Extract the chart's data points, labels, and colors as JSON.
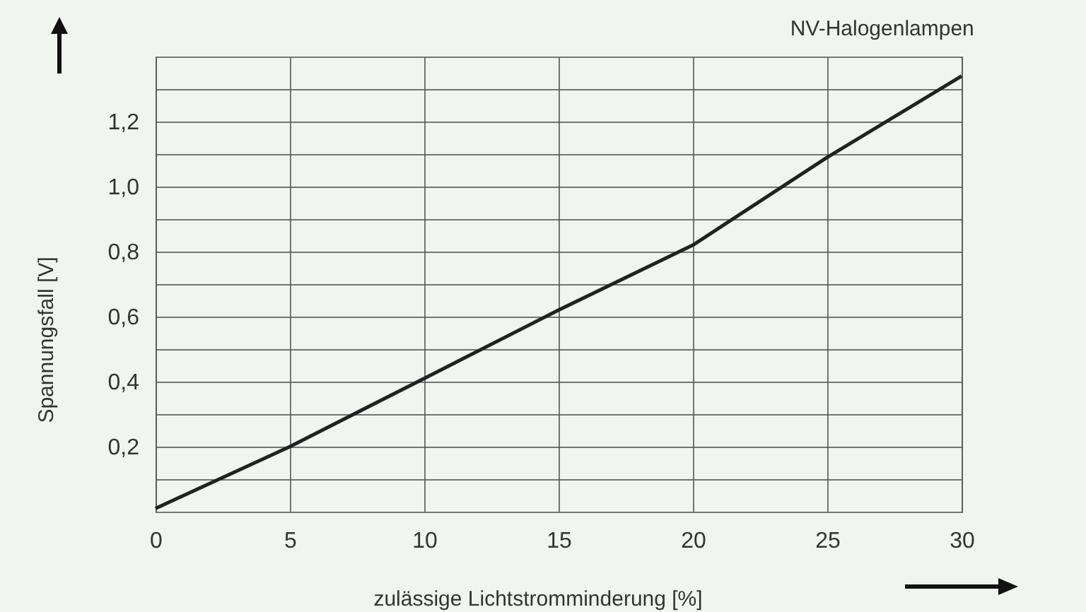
{
  "chart_data": {
    "type": "line",
    "title": "NV-Halogenlampen",
    "xlabel": "zulässige Lichtstromminderung [%]",
    "ylabel": "Spannungsfall [V]",
    "x": [
      0,
      5,
      10,
      15,
      20,
      25,
      30
    ],
    "series": [
      {
        "color": "#222222",
        "values": [
          0.01,
          0.2,
          0.41,
          0.62,
          0.82,
          1.09,
          1.34
        ]
      }
    ],
    "xlim": [
      0,
      30
    ],
    "xticks": [
      0,
      5,
      10,
      15,
      20,
      25,
      30
    ],
    "ylim": [
      0,
      1.4
    ],
    "yticks": [
      {
        "value": 0.1,
        "label": null
      },
      {
        "value": 0.2,
        "label": "0,2"
      },
      {
        "value": 0.3,
        "label": null
      },
      {
        "value": 0.4,
        "label": "0,4"
      },
      {
        "value": 0.5,
        "label": null
      },
      {
        "value": 0.6,
        "label": "0,6"
      },
      {
        "value": 0.7,
        "label": null
      },
      {
        "value": 0.8,
        "label": "0,8"
      },
      {
        "value": 0.9,
        "label": null
      },
      {
        "value": 1.0,
        "label": "1,0"
      },
      {
        "value": 1.1,
        "label": null
      },
      {
        "value": 1.2,
        "label": "1,2"
      },
      {
        "value": 1.3,
        "label": null
      }
    ],
    "grid": true,
    "marker": "none",
    "line_style": "solid",
    "legend": false
  }
}
